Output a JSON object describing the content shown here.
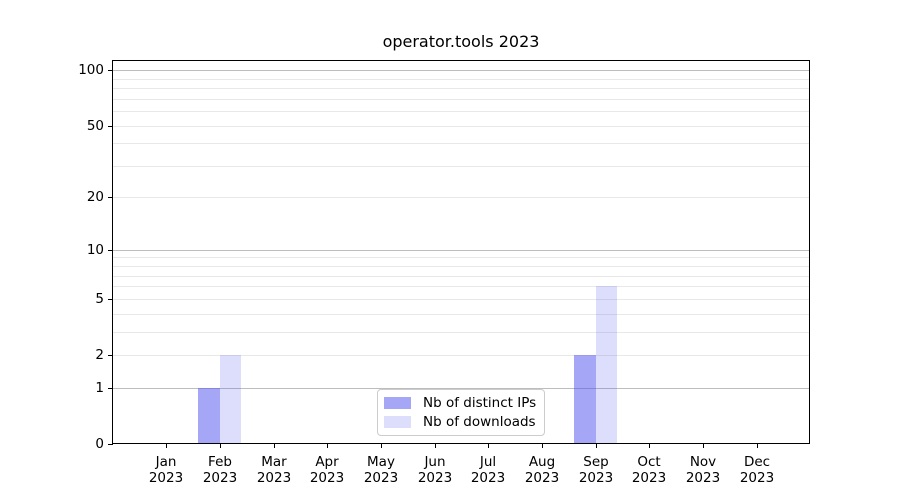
{
  "chart_data": {
    "type": "bar",
    "title": "operator.tools 2023",
    "categories": [
      "Jan 2023",
      "Feb 2023",
      "Mar 2023",
      "Apr 2023",
      "May 2023",
      "Jun 2023",
      "Jul 2023",
      "Aug 2023",
      "Sep 2023",
      "Oct 2023",
      "Nov 2023",
      "Dec 2023"
    ],
    "series": [
      {
        "name": "Nb of distinct IPs",
        "key": "distinct-ips",
        "color": "rgba(85,85,238,0.52)",
        "values": [
          0,
          1,
          0,
          0,
          0,
          0,
          0,
          0,
          2,
          0,
          0,
          0
        ]
      },
      {
        "name": "Nb of downloads",
        "key": "downloads",
        "color": "rgba(85,85,238,0.20)",
        "values": [
          0,
          2,
          0,
          0,
          0,
          0,
          0,
          0,
          6,
          0,
          0,
          0
        ]
      }
    ],
    "xlabel": "",
    "ylabel": "",
    "yscale": "log1p",
    "yticks": [
      0,
      1,
      2,
      5,
      10,
      20,
      50,
      100
    ],
    "ylim": [
      0,
      113.5
    ],
    "grid": {
      "orientation": "horizontal",
      "major_values": [
        1,
        10,
        100
      ],
      "minor_values": [
        2,
        3,
        4,
        5,
        6,
        7,
        8,
        9,
        20,
        30,
        40,
        50,
        60,
        70,
        80,
        90
      ]
    },
    "legend_position": "lower center inside plot",
    "style": {
      "background": "#ffffff",
      "spine_color": "#000000",
      "major_grid_color": "#bdbdbd",
      "minor_grid_color": "#e8e8e8",
      "tick_label_color": "#000000",
      "title_color": "#000000",
      "legend_border_color": "#cccccc",
      "legend_background": "#ffffff"
    }
  }
}
